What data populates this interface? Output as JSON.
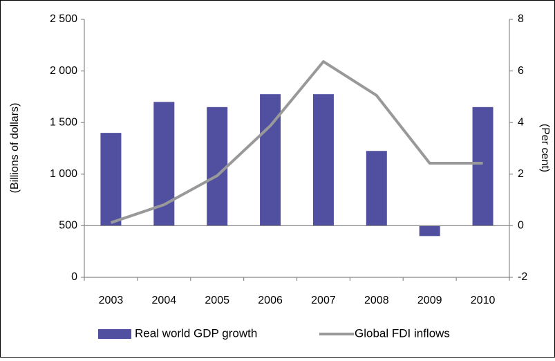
{
  "chart_data": {
    "type": "bar-line",
    "categories": [
      "2003",
      "2004",
      "2005",
      "2006",
      "2007",
      "2008",
      "2009",
      "2010"
    ],
    "series": [
      {
        "name": "Real world GDP growth",
        "type": "bar",
        "axis": "y2",
        "color": "#5150a0",
        "values": [
          3.6,
          4.8,
          4.6,
          5.1,
          5.1,
          2.9,
          -0.4,
          4.6
        ]
      },
      {
        "name": "Global FDI inflows",
        "type": "line",
        "color": "#999999",
        "values": [
          530,
          704,
          985,
          1468,
          2091,
          1763,
          1106,
          1106
        ]
      }
    ],
    "y_label": "(Billions of dollars)",
    "y2_label": "(Per cent)",
    "ylim": [
      0,
      2500
    ],
    "yticks": [
      0,
      500,
      {
        "value": 1000,
        "label": "1 000"
      },
      {
        "value": 1500,
        "label": "1 500"
      },
      {
        "value": 2000,
        "label": "2 000"
      },
      {
        "value": 2500,
        "label": "2 500"
      }
    ],
    "y2lim": [
      -2,
      8
    ],
    "y2ticks": [
      -2,
      0,
      2,
      4,
      6,
      8
    ],
    "legend": "bottom"
  }
}
